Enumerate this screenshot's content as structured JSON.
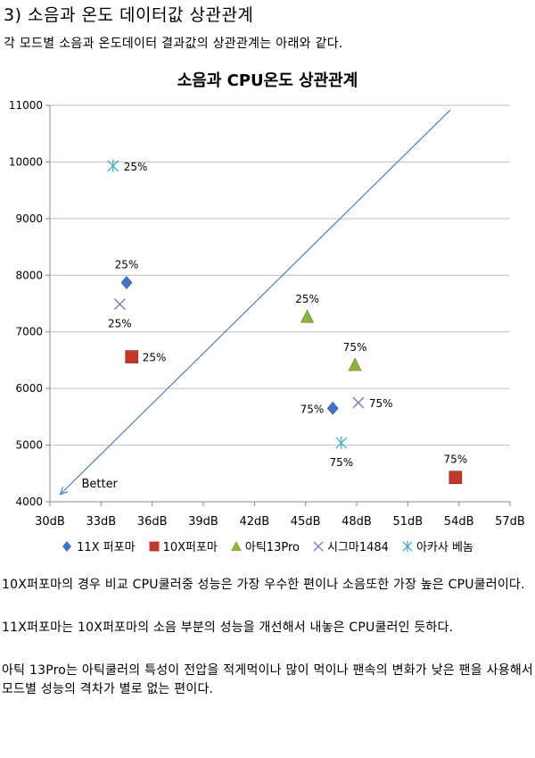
{
  "heading": "3) 소음과 온도 데이터값 상관관계",
  "intro": "각 모드별 소음과 온도데이터 결과값의 상관관계는 아래와 같다.",
  "chart_data": {
    "type": "scatter",
    "title": "소음과 CPU온도 상관관계",
    "xlabel": "",
    "ylabel": "",
    "xlim": [
      30,
      57
    ],
    "ylim": [
      4000,
      11000
    ],
    "x_ticks": [
      "30dB",
      "33dB",
      "36dB",
      "39dB",
      "42dB",
      "45dB",
      "48dB",
      "51dB",
      "54dB",
      "57dB"
    ],
    "y_ticks": [
      "4000",
      "5000",
      "6000",
      "7000",
      "8000",
      "9000",
      "10000",
      "11000"
    ],
    "grid": "horizontal",
    "legend_position": "bottom",
    "series": [
      {
        "name": "11X 퍼포마",
        "marker": "diamond",
        "color": "#4472c4",
        "points": [
          {
            "x": 34.5,
            "y": 7870,
            "label": "25%"
          },
          {
            "x": 46.6,
            "y": 5650,
            "label": "75%"
          }
        ]
      },
      {
        "name": "10X퍼포마",
        "marker": "square",
        "color": "#c0392b",
        "points": [
          {
            "x": 34.8,
            "y": 6560,
            "label": "25%"
          },
          {
            "x": 53.8,
            "y": 4430,
            "label": "75%"
          }
        ]
      },
      {
        "name": "아틱13Pro",
        "marker": "triangle",
        "color": "#8db33c",
        "points": [
          {
            "x": 45.1,
            "y": 7260,
            "label": "25%"
          },
          {
            "x": 47.9,
            "y": 6410,
            "label": "75%"
          }
        ]
      },
      {
        "name": "시그마1484",
        "marker": "x",
        "color": "#8e6fb7",
        "points": [
          {
            "x": 34.1,
            "y": 7490,
            "label": "25%"
          },
          {
            "x": 48.1,
            "y": 5750,
            "label": "75%"
          }
        ]
      },
      {
        "name": "아카사 베놈",
        "marker": "star",
        "color": "#4bacc6",
        "points": [
          {
            "x": 33.7,
            "y": 9930,
            "label": "25%"
          },
          {
            "x": 47.1,
            "y": 5040,
            "label": "75%"
          }
        ]
      }
    ],
    "annotation": {
      "text": "Better",
      "arrow_from": [
        53.5,
        10920
      ],
      "arrow_to": [
        30.6,
        4130
      ]
    }
  },
  "paragraphs": [
    "10X퍼포마의 경우 비교 CPU쿨러중 성능은 가장 우수한 편이나 소음또한 가장 높은 CPU쿨러이다.",
    "11X퍼포마는 10X퍼포마의 소음 부분의 성능을 개선해서 내놓은 CPU쿨러인 듯하다.",
    "아틱 13Pro는 아틱쿨러의 특성이 전압을 적게먹이나 많이 먹이나 팬속의 변화가 낮은 팬을 사용해서 모드별 성능의 격차가 별로 없는 편이다."
  ]
}
